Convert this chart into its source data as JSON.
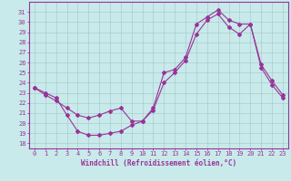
{
  "xlabel": "Windchill (Refroidissement éolien,°C)",
  "bg_color": "#c8eaea",
  "line_color": "#993399",
  "grid_color": "#aacccc",
  "x_ticks": [
    0,
    1,
    2,
    3,
    4,
    5,
    6,
    7,
    8,
    9,
    10,
    11,
    12,
    13,
    14,
    15,
    16,
    17,
    18,
    19,
    20,
    21,
    22,
    23
  ],
  "y_ticks": [
    18,
    19,
    20,
    21,
    22,
    23,
    24,
    25,
    26,
    27,
    28,
    29,
    30,
    31
  ],
  "ylim": [
    17.5,
    32.0
  ],
  "xlim": [
    -0.5,
    23.5
  ],
  "line1_x": [
    0,
    1,
    2,
    3,
    4,
    5,
    6,
    7,
    8,
    9,
    10,
    11,
    12,
    13,
    14,
    15,
    16,
    17,
    18,
    19,
    20,
    21,
    22,
    23
  ],
  "line1_y": [
    23.5,
    23.0,
    22.5,
    20.8,
    19.2,
    18.8,
    18.8,
    19.0,
    19.2,
    19.8,
    20.2,
    21.5,
    25.0,
    25.3,
    26.5,
    29.8,
    30.5,
    31.2,
    30.2,
    29.8,
    29.8,
    25.8,
    24.2,
    22.8
  ],
  "line2_x": [
    0,
    1,
    2,
    3,
    4,
    5,
    6,
    7,
    8,
    9,
    10,
    11,
    12,
    13,
    14,
    15,
    16,
    17,
    18,
    19,
    20,
    21,
    22,
    23
  ],
  "line2_y": [
    23.5,
    22.8,
    22.2,
    21.5,
    20.8,
    20.5,
    20.8,
    21.2,
    21.5,
    20.2,
    20.2,
    21.3,
    24.0,
    25.0,
    26.2,
    28.8,
    30.2,
    30.8,
    29.5,
    28.8,
    29.8,
    25.5,
    23.8,
    22.5
  ],
  "xlabel_fontsize": 5.5,
  "tick_fontsize": 5.0,
  "linewidth": 0.8,
  "markersize": 2.0
}
